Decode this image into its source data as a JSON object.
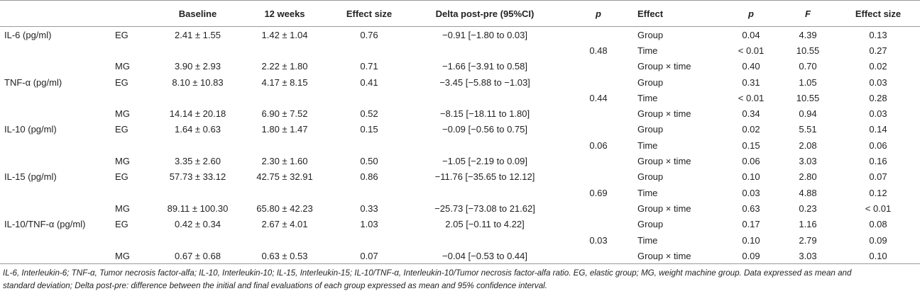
{
  "headers": {
    "variable": "",
    "group": "",
    "baseline": "Baseline",
    "weeks12": "12 weeks",
    "effect_size": "Effect size",
    "delta": "Delta post-pre (95%CI)",
    "p_between": "p",
    "effect": "Effect",
    "p": "p",
    "F": "F",
    "effect_size2": "Effect size"
  },
  "variables": [
    {
      "name": "IL-6 (pg/ml)",
      "p_between": "0.48",
      "groups": [
        {
          "group": "EG",
          "baseline": "2.41 ± 1.55",
          "weeks12": "1.42 ± 1.04",
          "es": "0.76",
          "delta": "−0.91 [−1.80 to 0.03]"
        },
        {
          "group": "MG",
          "baseline": "3.90 ± 2.93",
          "weeks12": "2.22 ± 1.80",
          "es": "0.71",
          "delta": "−1.66 [−3.91 to 0.58]"
        }
      ],
      "effects": [
        {
          "effect": "Group",
          "p": "0.04",
          "F": "4.39",
          "es": "0.13"
        },
        {
          "effect": "Time",
          "p": "< 0.01",
          "F": "10.55",
          "es": "0.27"
        },
        {
          "effect": "Group × time",
          "p": "0.40",
          "F": "0.70",
          "es": "0.02"
        }
      ]
    },
    {
      "name": "TNF-α (pg/ml)",
      "p_between": "0.44",
      "groups": [
        {
          "group": "EG",
          "baseline": "8.10 ± 10.83",
          "weeks12": "4.17 ± 8.15",
          "es": "0.41",
          "delta": "−3.45 [−5.88 to −1.03]"
        },
        {
          "group": "MG",
          "baseline": "14.14 ± 20.18",
          "weeks12": "6.90 ± 7.52",
          "es": "0.52",
          "delta": "−8.15 [−18.11 to 1.80]"
        }
      ],
      "effects": [
        {
          "effect": "Group",
          "p": "0.31",
          "F": "1.05",
          "es": "0.03"
        },
        {
          "effect": "Time",
          "p": "< 0.01",
          "F": "10.55",
          "es": "0.28"
        },
        {
          "effect": "Group × time",
          "p": "0.34",
          "F": "0.94",
          "es": "0.03"
        }
      ]
    },
    {
      "name": "IL-10 (pg/ml)",
      "p_between": "0.06",
      "groups": [
        {
          "group": "EG",
          "baseline": "1.64 ± 0.63",
          "weeks12": "1.80 ± 1.47",
          "es": "0.15",
          "delta": "−0.09 [−0.56 to 0.75]"
        },
        {
          "group": "MG",
          "baseline": "3.35 ± 2.60",
          "weeks12": "2.30 ± 1.60",
          "es": "0.50",
          "delta": "−1.05 [−2.19 to 0.09]"
        }
      ],
      "effects": [
        {
          "effect": "Group",
          "p": "0.02",
          "F": "5.51",
          "es": "0.14"
        },
        {
          "effect": "Time",
          "p": "0.15",
          "F": "2.08",
          "es": "0.06"
        },
        {
          "effect": "Group × time",
          "p": "0.06",
          "F": "3.03",
          "es": "0.16"
        }
      ]
    },
    {
      "name": "IL-15 (pg/ml)",
      "p_between": "0.69",
      "groups": [
        {
          "group": "EG",
          "baseline": "57.73 ± 33.12",
          "weeks12": "42.75 ± 32.91",
          "es": "0.86",
          "delta": "−11.76 [−35.65 to 12.12]"
        },
        {
          "group": "MG",
          "baseline": "89.11 ± 100.30",
          "weeks12": "65.80 ± 42.23",
          "es": "0.33",
          "delta": "−25.73 [−73.08 to 21.62]"
        }
      ],
      "effects": [
        {
          "effect": "Group",
          "p": "0.10",
          "F": "2.80",
          "es": "0.07"
        },
        {
          "effect": "Time",
          "p": "0.03",
          "F": "4.88",
          "es": "0.12"
        },
        {
          "effect": "Group × time",
          "p": "0.63",
          "F": "0.23",
          "es": "< 0.01"
        }
      ]
    },
    {
      "name": "IL-10/TNF-α (pg/ml)",
      "p_between": "0.03",
      "groups": [
        {
          "group": "EG",
          "baseline": "0.42 ± 0.34",
          "weeks12": "2.67 ± 4.01",
          "es": "1.03",
          "delta": "2.05 [−0.11 to 4.22]"
        },
        {
          "group": "MG",
          "baseline": "0.67 ± 0.68",
          "weeks12": "0.63 ± 0.53",
          "es": "0.07",
          "delta": "−0.04 [−0.53 to 0.44]"
        }
      ],
      "effects": [
        {
          "effect": "Group",
          "p": "0.17",
          "F": "1.16",
          "es": "0.08"
        },
        {
          "effect": "Time",
          "p": "0.10",
          "F": "2.79",
          "es": "0.09"
        },
        {
          "effect": "Group × time",
          "p": "0.09",
          "F": "3.03",
          "es": "0.10"
        }
      ]
    }
  ],
  "footnote": {
    "line1": "IL-6, Interleukin-6; TNF-α, Tumor necrosis factor-alfa; IL-10, Interleukin-10; IL-15, Interleukin-15; IL-10/TNF-α, Interleukin-10/Tumor necrosis factor-alfa ratio. EG, elastic group; MG, weight machine group. Data expressed as mean and",
    "line2": "standard deviation; Delta post-pre: difference between the initial and final evaluations of each group expressed as mean and 95% confidence interval."
  }
}
